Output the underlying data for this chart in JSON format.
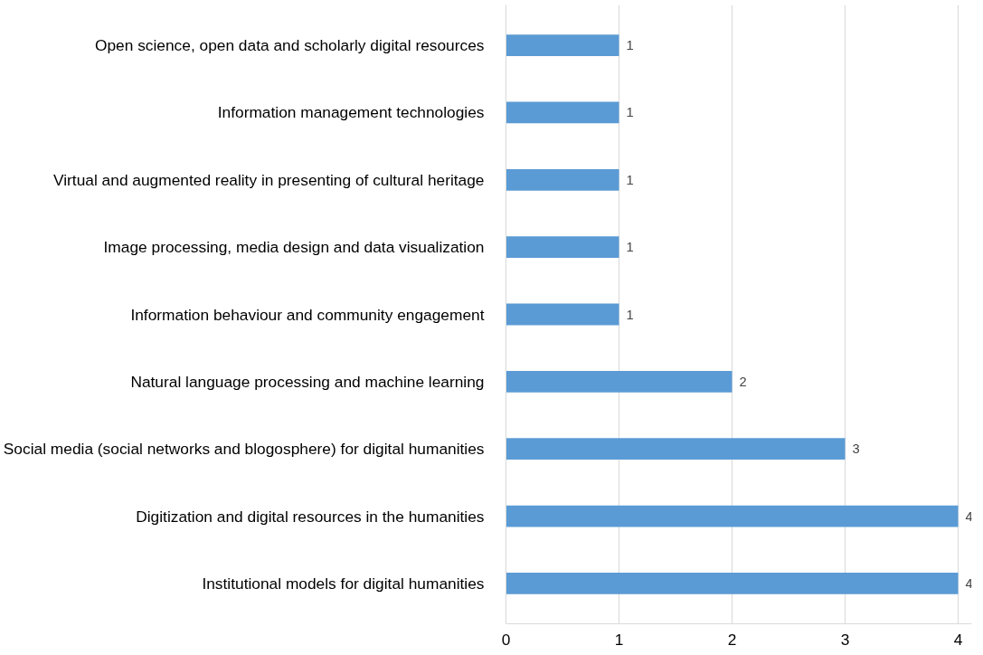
{
  "chart_data": {
    "type": "bar",
    "orientation": "horizontal",
    "categories": [
      "Open science, open data and scholarly digital resources",
      "Information management technologies",
      "Virtual and augmented reality in presenting of cultural heritage",
      "Image processing, media design and data visualization",
      "Information behaviour and community engagement",
      "Natural language processing and machine learning",
      "Social media (social networks and blogosphere) for digital humanities",
      "Digitization and digital resources in the humanities",
      "Institutional models for digital humanities"
    ],
    "values": [
      1,
      1,
      1,
      1,
      1,
      2,
      3,
      4,
      4
    ],
    "color": "#5b9bd5",
    "xlim": [
      0,
      4.12
    ],
    "xticks": [
      0,
      1,
      2,
      3,
      4
    ],
    "grid": "x",
    "data_labels": true
  }
}
